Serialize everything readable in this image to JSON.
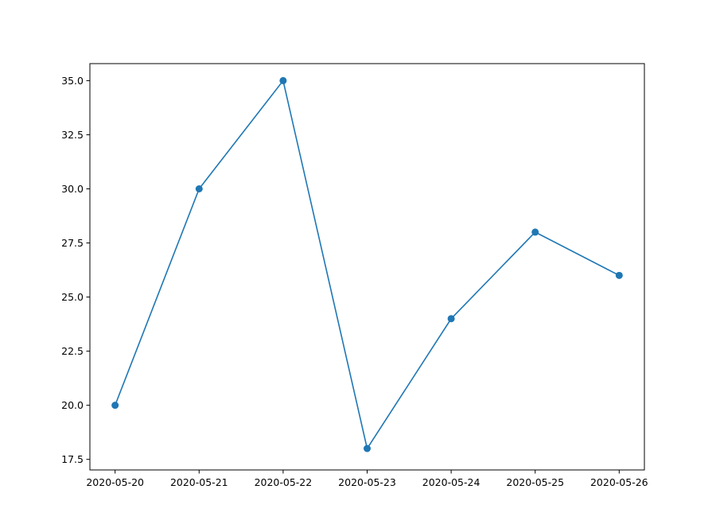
{
  "chart_data": {
    "type": "line",
    "title": "",
    "xlabel": "",
    "ylabel": "",
    "x": [
      "2020-05-20",
      "2020-05-21",
      "2020-05-22",
      "2020-05-23",
      "2020-05-24",
      "2020-05-25",
      "2020-05-26"
    ],
    "series": [
      {
        "values": [
          20,
          30,
          35,
          18,
          24,
          28,
          26
        ],
        "color": "#1f77b4",
        "marker": "circle"
      }
    ],
    "xlim": [
      "2020-05-20",
      "2020-05-26"
    ],
    "ylim": [
      17.5,
      35.0
    ],
    "yticks": [
      "17.5",
      "20.0",
      "22.5",
      "25.0",
      "27.5",
      "30.0",
      "32.5",
      "35.0"
    ],
    "grid": false,
    "legend": "none"
  }
}
